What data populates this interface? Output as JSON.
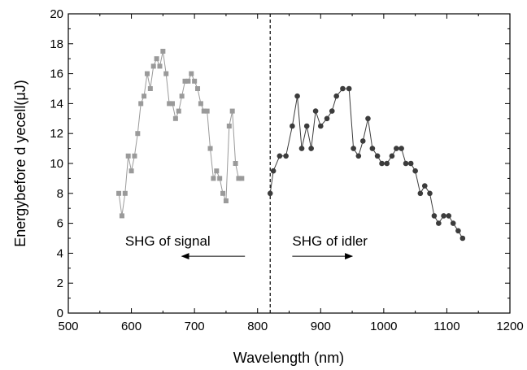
{
  "chart_data": {
    "type": "line",
    "xlabel": "Wavelength (nm)",
    "ylabel": "Energybefore d yecell(μJ)",
    "xlim": [
      500,
      1200
    ],
    "ylim": [
      0,
      20
    ],
    "xticks": [
      500,
      600,
      700,
      800,
      900,
      1000,
      1100,
      1200
    ],
    "yticks": [
      0,
      2,
      4,
      6,
      8,
      10,
      12,
      14,
      16,
      18,
      20
    ],
    "grid": false,
    "divider_x": 820,
    "series": [
      {
        "marker": "square",
        "color": "#9a9a9a",
        "points": [
          [
            580,
            8.0
          ],
          [
            585,
            6.5
          ],
          [
            590,
            8.0
          ],
          [
            595,
            10.5
          ],
          [
            600,
            9.5
          ],
          [
            605,
            10.5
          ],
          [
            610,
            12.0
          ],
          [
            615,
            14.0
          ],
          [
            620,
            14.5
          ],
          [
            625,
            16.0
          ],
          [
            630,
            15.0
          ],
          [
            635,
            16.5
          ],
          [
            640,
            17.0
          ],
          [
            645,
            16.5
          ],
          [
            650,
            17.5
          ],
          [
            655,
            16.0
          ],
          [
            660,
            14.0
          ],
          [
            665,
            14.0
          ],
          [
            670,
            13.0
          ],
          [
            675,
            13.5
          ],
          [
            680,
            14.5
          ],
          [
            685,
            15.5
          ],
          [
            690,
            15.5
          ],
          [
            695,
            16.0
          ],
          [
            700,
            15.5
          ],
          [
            705,
            15.0
          ],
          [
            710,
            14.0
          ],
          [
            715,
            13.5
          ],
          [
            720,
            13.5
          ],
          [
            725,
            11.0
          ],
          [
            730,
            9.0
          ],
          [
            735,
            9.5
          ],
          [
            740,
            9.0
          ],
          [
            745,
            8.0
          ],
          [
            750,
            7.5
          ],
          [
            755,
            12.5
          ],
          [
            760,
            13.5
          ],
          [
            765,
            10.0
          ],
          [
            770,
            9.0
          ],
          [
            775,
            9.0
          ]
        ]
      },
      {
        "marker": "circle",
        "color": "#3c3c3c",
        "points": [
          [
            820,
            8.0
          ],
          [
            825,
            9.5
          ],
          [
            835,
            10.5
          ],
          [
            845,
            10.5
          ],
          [
            855,
            12.5
          ],
          [
            863,
            14.5
          ],
          [
            870,
            11.0
          ],
          [
            878,
            12.5
          ],
          [
            885,
            11.0
          ],
          [
            892,
            13.5
          ],
          [
            900,
            12.5
          ],
          [
            910,
            13.0
          ],
          [
            918,
            13.5
          ],
          [
            925,
            14.5
          ],
          [
            935,
            15.0
          ],
          [
            945,
            15.0
          ],
          [
            952,
            11.0
          ],
          [
            960,
            10.5
          ],
          [
            967,
            11.5
          ],
          [
            975,
            13.0
          ],
          [
            982,
            11.0
          ],
          [
            990,
            10.5
          ],
          [
            997,
            10.0
          ],
          [
            1005,
            10.0
          ],
          [
            1013,
            10.5
          ],
          [
            1020,
            11.0
          ],
          [
            1028,
            11.0
          ],
          [
            1035,
            10.0
          ],
          [
            1043,
            10.0
          ],
          [
            1050,
            9.5
          ],
          [
            1058,
            8.0
          ],
          [
            1065,
            8.5
          ],
          [
            1073,
            8.0
          ],
          [
            1080,
            6.5
          ],
          [
            1087,
            6.0
          ],
          [
            1095,
            6.5
          ],
          [
            1103,
            6.5
          ],
          [
            1110,
            6.0
          ],
          [
            1118,
            5.5
          ],
          [
            1125,
            5.0
          ]
        ]
      }
    ],
    "annotations": [
      {
        "text": "SHG of signal",
        "anchor_x": 590,
        "anchor_y": 4.5,
        "arrow_direction": "left",
        "arrow_from": 780,
        "arrow_to": 680,
        "arrow_y": 3.8
      },
      {
        "text": "SHG of idler",
        "anchor_x": 855,
        "anchor_y": 4.5,
        "arrow_direction": "right",
        "arrow_from": 855,
        "arrow_to": 950,
        "arrow_y": 3.8
      }
    ]
  }
}
